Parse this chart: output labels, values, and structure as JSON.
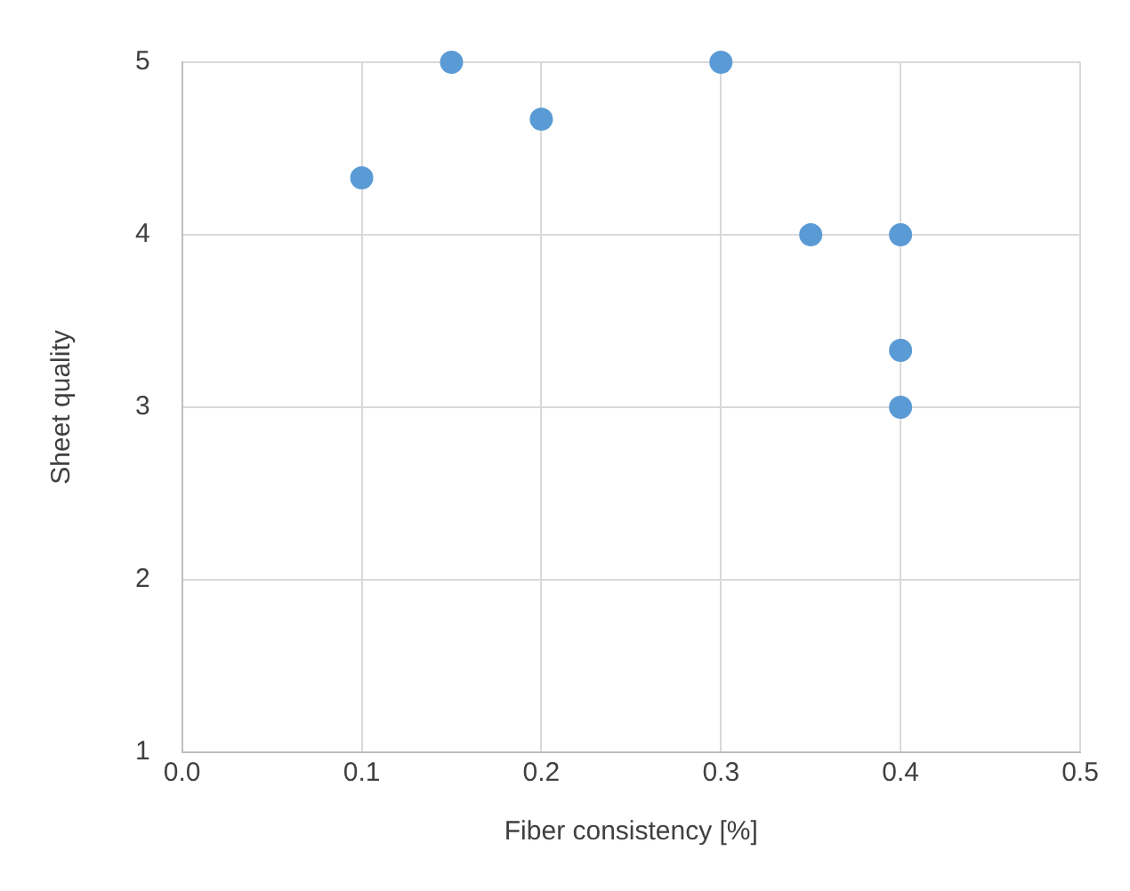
{
  "chart_data": {
    "type": "scatter",
    "xlabel": "Fiber consistency [%]",
    "ylabel": "Sheet quality",
    "x": [
      0.1,
      0.15,
      0.2,
      0.3,
      0.35,
      0.4,
      0.4,
      0.4
    ],
    "series": [
      {
        "color": "#5b9bd5",
        "values": [
          4.33,
          5,
          4.67,
          5,
          4,
          4,
          3.33,
          3
        ]
      }
    ],
    "xlim": [
      0,
      0.5
    ],
    "xticks": [
      {
        "value": 0,
        "label": "0.0"
      },
      0.1,
      0.2,
      0.3,
      0.4,
      0.5
    ],
    "ylim": [
      1,
      5
    ],
    "yticks": [
      1,
      2,
      3,
      4,
      5
    ],
    "grid": true,
    "marker": "circle"
  }
}
